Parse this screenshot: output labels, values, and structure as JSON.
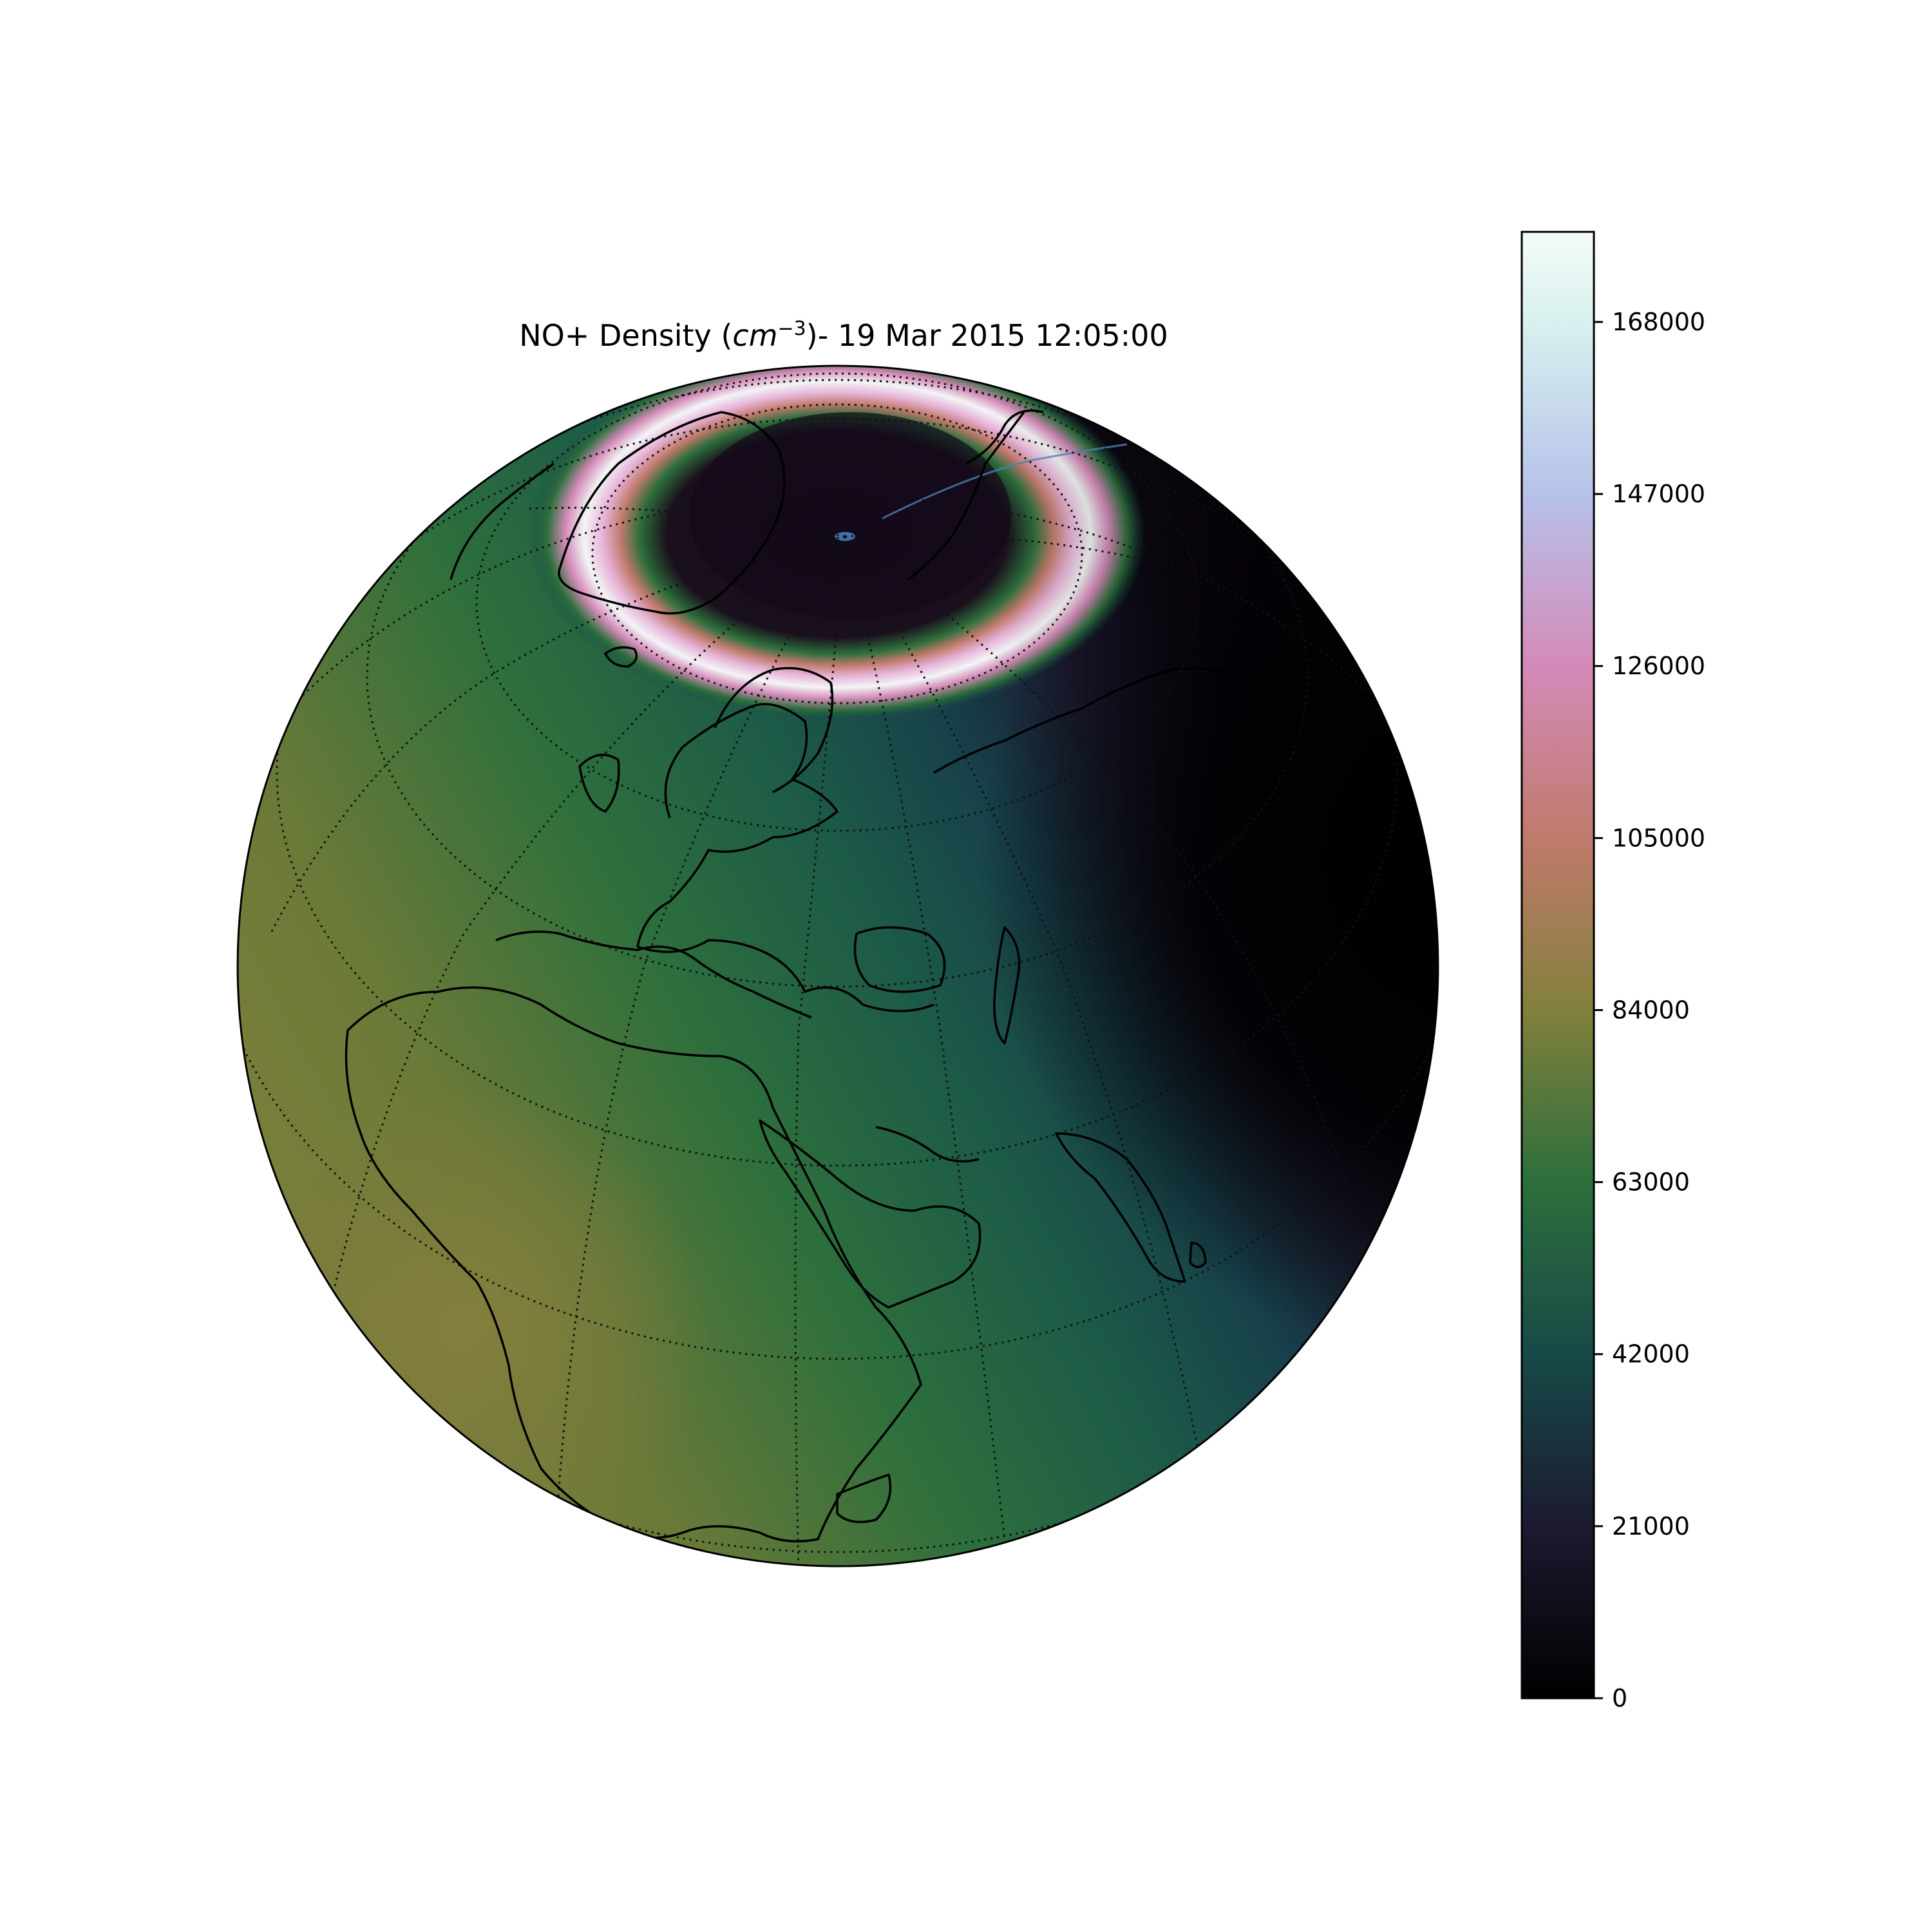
{
  "chart_data": {
    "type": "heatmap",
    "projection": "orthographic",
    "title": {
      "prefix": "NO+ Density (",
      "unit_base": "cm",
      "unit_exponent": "−3",
      "suffix": ")- 19 Mar 2015 12:05:00"
    },
    "quantity": "NO+ Density",
    "units": "cm^-3",
    "datetime": "19 Mar 2015 12:05:00",
    "colorbar": {
      "min": 0,
      "max": 179000,
      "ticks": [
        0,
        21000,
        42000,
        63000,
        84000,
        105000,
        126000,
        147000,
        168000
      ],
      "tick_labels": [
        "0",
        "21000",
        "42000",
        "63000",
        "84000",
        "105000",
        "126000",
        "147000",
        "168000"
      ],
      "colormap_stops": [
        {
          "value": 0,
          "color": "#000000"
        },
        {
          "value": 21000,
          "color": "#1c1a30"
        },
        {
          "value": 42000,
          "color": "#174a48"
        },
        {
          "value": 63000,
          "color": "#2d6f3c"
        },
        {
          "value": 84000,
          "color": "#82803c"
        },
        {
          "value": 105000,
          "color": "#c07a6c"
        },
        {
          "value": 126000,
          "color": "#d48ab8"
        },
        {
          "value": 147000,
          "color": "#b6c2ea"
        },
        {
          "value": 168000,
          "color": "#d8f0ee"
        },
        {
          "value": 179000,
          "color": "#f5fcf9"
        }
      ]
    },
    "auroral_oval": {
      "peak_density": 168000,
      "polar_cap_density": 10000
    },
    "field_regions": {
      "dayside_max_density": 84000,
      "nightside_density": 0
    },
    "gridlines": true,
    "coastlines": true
  }
}
